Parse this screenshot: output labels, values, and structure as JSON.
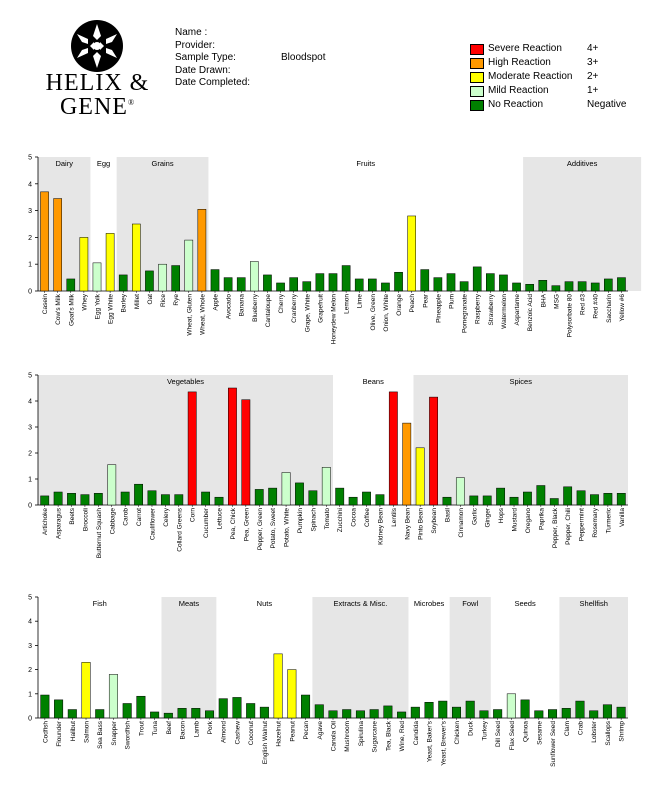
{
  "header": {
    "logo_text_line1": "HELIX &",
    "logo_text_line2": "GENE",
    "registered_mark": "®",
    "fields": [
      {
        "label": "Name :",
        "value": ""
      },
      {
        "label": "Provider:",
        "value": ""
      },
      {
        "label": "Sample Type:",
        "value": "Bloodspot"
      },
      {
        "label": "Date Drawn:",
        "value": ""
      },
      {
        "label": "Date Completed:",
        "value": ""
      }
    ]
  },
  "legend": [
    {
      "label": "Severe Reaction",
      "score": "4+",
      "color": "#ff0000"
    },
    {
      "label": "High Reaction",
      "score": "3+",
      "color": "#ff9900"
    },
    {
      "label": "Moderate Reaction",
      "score": "2+",
      "color": "#ffff00"
    },
    {
      "label": "Mild Reaction",
      "score": "1+",
      "color": "#ccffcc"
    },
    {
      "label": "No Reaction",
      "score": "Negative",
      "color": "#008000"
    }
  ],
  "chart_data": [
    {
      "type": "bar",
      "ylim": [
        0,
        5
      ],
      "yticks": [
        "0",
        "1",
        "2",
        "3",
        "4",
        "5"
      ],
      "groups": [
        {
          "name": "Dairy",
          "start": 0,
          "end": 4,
          "shaded": true
        },
        {
          "name": "Egg",
          "start": 4,
          "end": 6,
          "shaded": false
        },
        {
          "name": "Grains",
          "start": 6,
          "end": 13,
          "shaded": true
        },
        {
          "name": "Fruits",
          "start": 13,
          "end": 37,
          "shaded": false
        },
        {
          "name": "Additives",
          "start": 37,
          "end": 46,
          "shaded": true
        }
      ],
      "categories": [
        "Casein",
        "Cow's Milk",
        "Goat's Milk",
        "Whey",
        "Egg Yolk",
        "Egg White",
        "Barley",
        "Millet",
        "Oat",
        "Rice",
        "Rye",
        "Wheat, Gluten",
        "Wheat, Whole",
        "Apple",
        "Avocado",
        "Banana",
        "Blueberry",
        "Cantaloupe",
        "Cherry",
        "Cranberry",
        "Grape, White",
        "Grapefruit",
        "Honeydew Melon",
        "Lemon",
        "Lime",
        "Olive, Green",
        "Onion, White",
        "Orange",
        "Peach",
        "Pear",
        "Pineapple",
        "Plum",
        "Pomegranate",
        "Raspberry",
        "Strawberry",
        "Watermelon",
        "Aspartame",
        "Benzoic Acid",
        "BHA",
        "MSG",
        "Polysorbate 80",
        "Red #3",
        "Red #40",
        "Saccharin",
        "Yellow #6"
      ],
      "values": [
        3.7,
        3.45,
        0.45,
        2.0,
        1.05,
        2.15,
        0.6,
        2.5,
        0.75,
        1.0,
        0.95,
        1.9,
        3.05,
        0.8,
        0.5,
        0.5,
        1.1,
        0.6,
        0.3,
        0.5,
        0.35,
        0.65,
        0.65,
        0.95,
        0.45,
        0.45,
        0.3,
        0.7,
        2.8,
        0.8,
        0.5,
        0.65,
        0.35,
        0.9,
        0.65,
        0.6,
        0.3,
        0.25,
        0.4,
        0.2,
        0.35,
        0.35,
        0.3,
        0.45,
        0.5
      ]
    },
    {
      "type": "bar",
      "ylim": [
        0,
        5
      ],
      "yticks": [
        "0",
        "1",
        "2",
        "3",
        "4",
        "5"
      ],
      "groups": [
        {
          "name": "Vegetables",
          "start": 0,
          "end": 22,
          "shaded": true
        },
        {
          "name": "Beans",
          "start": 22,
          "end": 28,
          "shaded": false
        },
        {
          "name": "Spices",
          "start": 28,
          "end": 44,
          "shaded": true
        }
      ],
      "categories": [
        "Artichoke",
        "Asparagus",
        "Beets",
        "Broccoli",
        "Butternut Squash",
        "Cabbage",
        "Carob",
        "Carrot",
        "Cauliflower",
        "Celery",
        "Collard Greens",
        "Corn",
        "Cucumber",
        "Lettuce",
        "Pea, Chick",
        "Pea, Green",
        "Pepper, Green",
        "Potato, Sweet",
        "Potato, White",
        "Pumpkin",
        "Spinach",
        "Tomato",
        "Zucchini",
        "Cocoa",
        "Coffee",
        "Kidney Bean",
        "Lentils",
        "Navy Bean",
        "Pinto Bean",
        "Soybean",
        "Basil",
        "Cinnamon",
        "Garlic",
        "Ginger",
        "Hops",
        "Mustard",
        "Oregano",
        "Paprika",
        "Pepper, Black",
        "Pepper, Chili",
        "Peppermint",
        "Rosemary",
        "Turmeric",
        "Vanilla"
      ],
      "values": [
        0.35,
        0.5,
        0.45,
        0.4,
        0.45,
        1.55,
        0.5,
        0.8,
        0.55,
        0.4,
        0.4,
        4.35,
        0.5,
        0.3,
        4.5,
        4.05,
        0.6,
        0.65,
        1.25,
        0.85,
        0.55,
        1.45,
        0.65,
        0.3,
        0.5,
        0.4,
        4.35,
        3.15,
        2.2,
        4.15,
        0.3,
        1.05,
        0.35,
        0.35,
        0.65,
        0.3,
        0.5,
        0.75,
        0.25,
        0.7,
        0.55,
        0.4,
        0.45,
        0.45
      ]
    },
    {
      "type": "bar",
      "ylim": [
        0,
        5
      ],
      "yticks": [
        "0",
        "1",
        "2",
        "3",
        "4",
        "5"
      ],
      "groups": [
        {
          "name": "Fish",
          "start": 0,
          "end": 9,
          "shaded": false
        },
        {
          "name": "Meats",
          "start": 9,
          "end": 13,
          "shaded": true
        },
        {
          "name": "Nuts",
          "start": 13,
          "end": 20,
          "shaded": false
        },
        {
          "name": "Extracts & Misc.",
          "start": 20,
          "end": 27,
          "shaded": true
        },
        {
          "name": "Microbes",
          "start": 27,
          "end": 30,
          "shaded": false
        },
        {
          "name": "Fowl",
          "start": 30,
          "end": 33,
          "shaded": true
        },
        {
          "name": "Seeds",
          "start": 33,
          "end": 38,
          "shaded": false
        },
        {
          "name": "Shellfish",
          "start": 38,
          "end": 43,
          "shaded": true
        }
      ],
      "categories": [
        "Codfish",
        "Flounder",
        "Halibut",
        "Salmon",
        "Sea Bass",
        "Snapper",
        "Swordfish",
        "Trout",
        "Tuna",
        "Beef",
        "Bacon",
        "Lamb",
        "Pork",
        "Almond",
        "Cashew",
        "Coconut",
        "English Walnut",
        "Hazelnut",
        "Peanut",
        "Pecan",
        "Agave",
        "Canola Oil",
        "Mushroom",
        "Spirulina",
        "Sugarcane",
        "Tea, Black",
        "Wine, Red",
        "Candida",
        "Yeast, Baker's",
        "Yeast, Brewer's",
        "Chicken",
        "Duck",
        "Turkey",
        "Dill Seed",
        "Flax Seed",
        "Quinoa",
        "Sesame",
        "Sunflower Seed",
        "Clam",
        "Crab",
        "Lobster",
        "Scallops",
        "Shrimp"
      ],
      "values": [
        0.95,
        0.75,
        0.35,
        2.3,
        0.35,
        1.8,
        0.6,
        0.9,
        0.25,
        0.2,
        0.4,
        0.4,
        0.3,
        0.8,
        0.85,
        0.6,
        0.45,
        2.65,
        2.0,
        0.95,
        0.55,
        0.3,
        0.35,
        0.3,
        0.35,
        0.5,
        0.25,
        0.45,
        0.65,
        0.7,
        0.45,
        0.7,
        0.3,
        0.35,
        1.0,
        0.75,
        0.3,
        0.35,
        0.4,
        0.7,
        0.3,
        0.55,
        0.45
      ]
    }
  ]
}
